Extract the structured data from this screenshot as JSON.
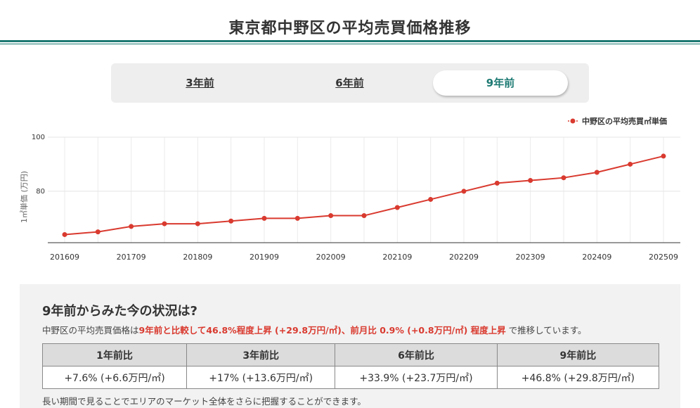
{
  "page": {
    "title": "東京都中野区の平均売買価格推移"
  },
  "tabs": [
    {
      "label": "3年前",
      "active": false
    },
    {
      "label": "6年前",
      "active": false
    },
    {
      "label": "9年前",
      "active": true
    }
  ],
  "chart_data": {
    "type": "line",
    "title": "",
    "xlabel": "",
    "ylabel": "1㎡単価 (万円)",
    "ylim": [
      61,
      100
    ],
    "yticks": [
      80,
      100
    ],
    "grid": true,
    "legend_position": "top-right",
    "x": [
      "201609",
      "201703",
      "201709",
      "201803",
      "201809",
      "201903",
      "201909",
      "202003",
      "202009",
      "202103",
      "202109",
      "202203",
      "202209",
      "202303",
      "202309",
      "202403",
      "202409",
      "202503",
      "202509"
    ],
    "xtick_labels": [
      "201609",
      "201709",
      "201809",
      "201909",
      "202009",
      "202109",
      "202209",
      "202309",
      "202409",
      "202509"
    ],
    "series": [
      {
        "name": "中野区の平均売買㎡単価",
        "color": "#d93a2f",
        "values": [
          64,
          65,
          67,
          68,
          68,
          69,
          70,
          70,
          71,
          71,
          74,
          77,
          80,
          83,
          84,
          85,
          87,
          90,
          93
        ]
      }
    ]
  },
  "summary": {
    "heading": "9年前からみた今の状況は?",
    "text_prefix": "中野区の平均売買価格は",
    "highlight": "9年前と比較して46.8%程度上昇 (+29.8万円/㎡)、前月比 0.9% (+0.8万円/㎡) 程度上昇",
    "text_suffix": " で推移しています。",
    "table_headers": [
      "1年前比",
      "3年前比",
      "6年前比",
      "9年前比"
    ],
    "table_values": [
      "+7.6% (+6.6万円/㎡)",
      "+17% (+13.6万円/㎡)",
      "+33.9% (+23.7万円/㎡)",
      "+46.8% (+29.8万円/㎡)"
    ],
    "note": "長い期間で見ることでエリアのマーケット全体をさらに把握することができます。"
  }
}
